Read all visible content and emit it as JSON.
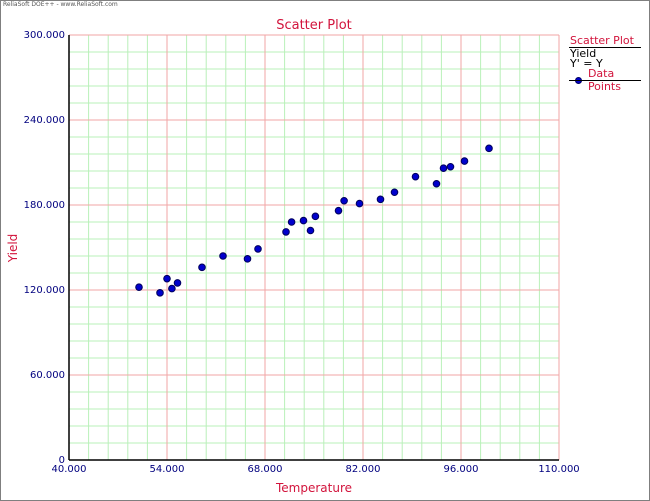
{
  "app": {
    "watermark": "ReliaSoft DOE++ - www.ReliaSoft.com"
  },
  "colors": {
    "title": "#d2143c",
    "axis_label": "#d2143c",
    "tick_label": "#00007f",
    "major_grid": "#f2a6a6",
    "minor_grid": "#b9f0b9",
    "point_fill": "#0000cc",
    "point_stroke": "#00005a"
  },
  "legend": {
    "title": "Scatter Plot",
    "series_name": "Yield",
    "equation": "Y' = Y",
    "points_label": "Data Points"
  },
  "chart_data": {
    "type": "scatter",
    "title": "Scatter Plot",
    "xlabel": "Temperature",
    "ylabel": "Yield",
    "xlim": [
      40,
      110
    ],
    "ylim": [
      0,
      300
    ],
    "xticks": [
      40,
      54,
      68,
      82,
      96,
      110
    ],
    "yticks": [
      0,
      60,
      120,
      180,
      240,
      300
    ],
    "xtick_labels": [
      "40.000",
      "54.000",
      "68.000",
      "82.000",
      "96.000",
      "110.000"
    ],
    "ytick_labels": [
      "0",
      "60.000",
      "120.000",
      "180.000",
      "240.000",
      "300.000"
    ],
    "x_minor_step": 2.8,
    "y_minor_step": 12,
    "grid": true,
    "legend_position": "right",
    "series": [
      {
        "name": "Data Points",
        "x": [
          50,
          53,
          54,
          54.7,
          55.5,
          59,
          62,
          65.5,
          67,
          71,
          71.8,
          73.5,
          74.5,
          75.2,
          78.5,
          79.3,
          81.5,
          84.5,
          86.5,
          89.5,
          92.5,
          93.5,
          94.5,
          96.5,
          100
        ],
        "y": [
          122,
          118,
          128,
          121,
          125,
          136,
          144,
          142,
          149,
          161,
          168,
          169,
          162,
          172,
          176,
          183,
          181,
          184,
          189,
          200,
          195,
          206,
          207,
          211,
          220
        ]
      }
    ]
  }
}
